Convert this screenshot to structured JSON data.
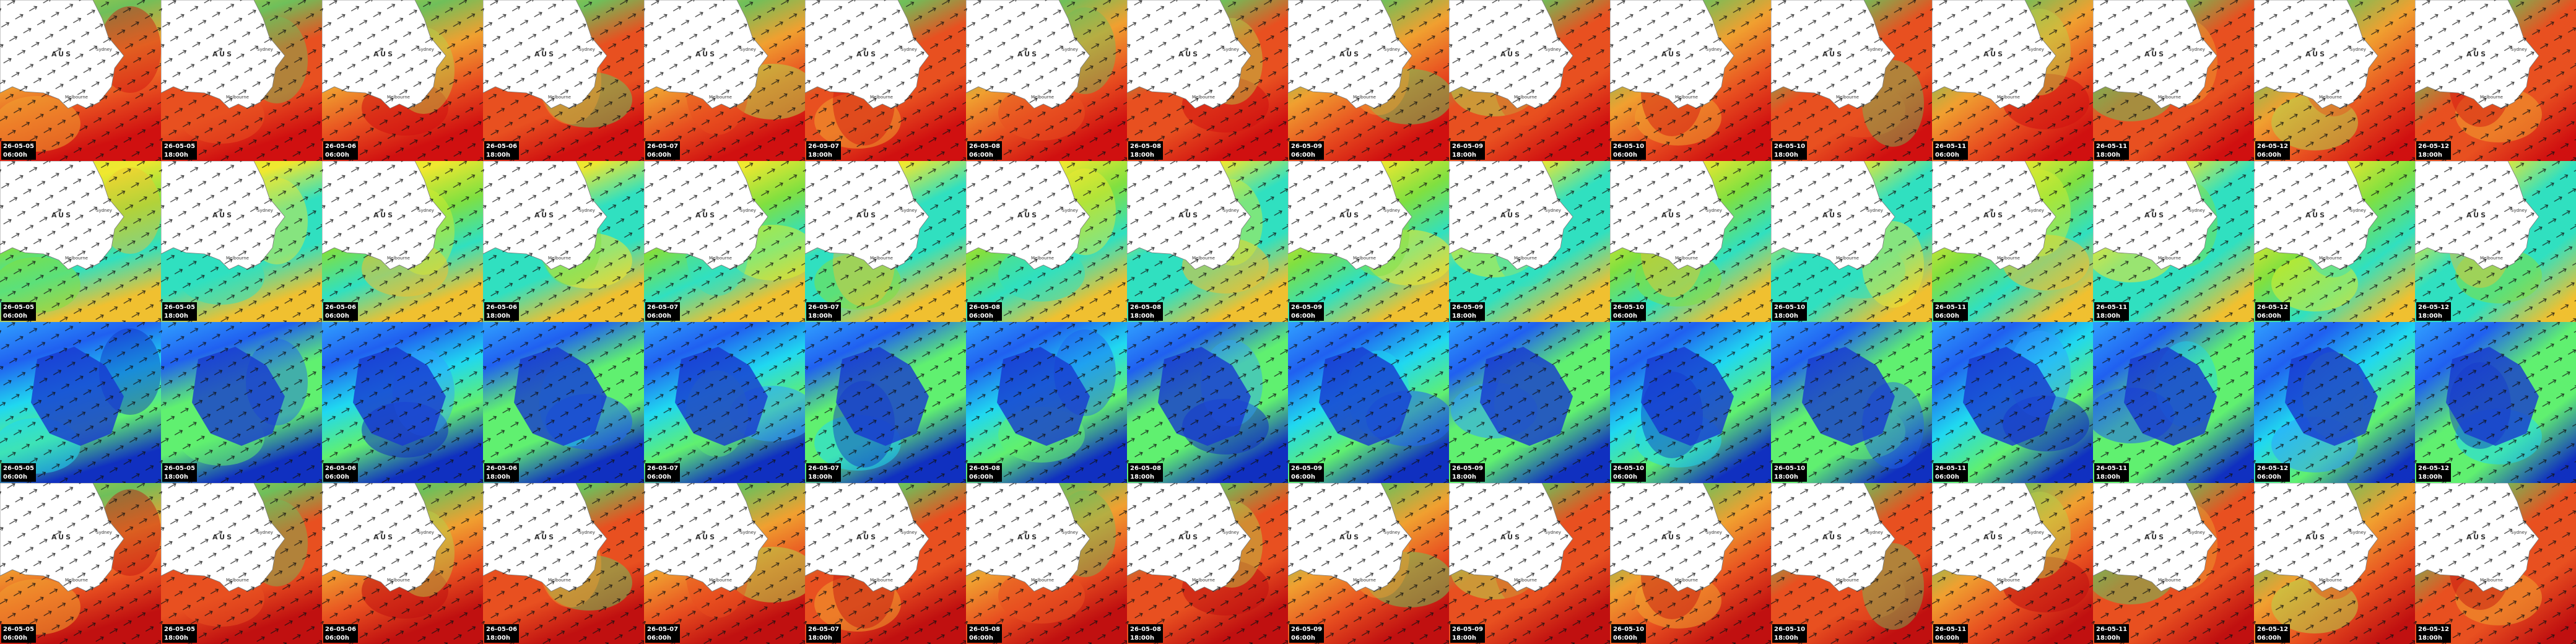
{
  "map_labels": {
    "country": "AUS",
    "city_north": "Sydney",
    "city_south": "Melbourne"
  },
  "rows": [
    {
      "tiles": [
        {
          "date": "26-05-05",
          "time": "06:00h"
        },
        {
          "date": "26-05-05",
          "time": "18:00h"
        },
        {
          "date": "26-05-06",
          "time": "06:00h"
        },
        {
          "date": "26-05-06",
          "time": "18:00h"
        },
        {
          "date": "26-05-07",
          "time": "06:00h"
        },
        {
          "date": "26-05-07",
          "time": "18:00h"
        },
        {
          "date": "26-05-08",
          "time": "06:00h"
        },
        {
          "date": "26-05-08",
          "time": "18:00h"
        },
        {
          "date": "26-05-09",
          "time": "06:00h"
        },
        {
          "date": "26-05-09",
          "time": "18:00h"
        },
        {
          "date": "26-05-10",
          "time": "06:00h"
        },
        {
          "date": "26-05-10",
          "time": "18:00h"
        },
        {
          "date": "26-05-11",
          "time": "06:00h"
        },
        {
          "date": "26-05-11",
          "time": "18:00h"
        },
        {
          "date": "26-05-12",
          "time": "06:00h"
        },
        {
          "date": "26-05-12",
          "time": "18:00h"
        }
      ]
    },
    {
      "tiles": [
        {
          "date": "26-05-05",
          "time": "06:00h"
        },
        {
          "date": "26-05-05",
          "time": "18:00h"
        },
        {
          "date": "26-05-06",
          "time": "06:00h"
        },
        {
          "date": "26-05-06",
          "time": "18:00h"
        },
        {
          "date": "26-05-07",
          "time": "06:00h"
        },
        {
          "date": "26-05-07",
          "time": "18:00h"
        },
        {
          "date": "26-05-08",
          "time": "06:00h"
        },
        {
          "date": "26-05-08",
          "time": "18:00h"
        },
        {
          "date": "26-05-09",
          "time": "06:00h"
        },
        {
          "date": "26-05-09",
          "time": "18:00h"
        },
        {
          "date": "26-05-10",
          "time": "06:00h"
        },
        {
          "date": "26-05-10",
          "time": "18:00h"
        },
        {
          "date": "26-05-11",
          "time": "06:00h"
        },
        {
          "date": "26-05-11",
          "time": "18:00h"
        },
        {
          "date": "26-05-12",
          "time": "06:00h"
        },
        {
          "date": "26-05-12",
          "time": "18:00h"
        }
      ]
    },
    {
      "tiles": [
        {
          "date": "26-05-05",
          "time": "06:00h"
        },
        {
          "date": "26-05-05",
          "time": "18:00h"
        },
        {
          "date": "26-05-06",
          "time": "06:00h"
        },
        {
          "date": "26-05-06",
          "time": "18:00h"
        },
        {
          "date": "26-05-07",
          "time": "06:00h"
        },
        {
          "date": "26-05-07",
          "time": "18:00h"
        },
        {
          "date": "26-05-08",
          "time": "06:00h"
        },
        {
          "date": "26-05-08",
          "time": "18:00h"
        },
        {
          "date": "26-05-09",
          "time": "06:00h"
        },
        {
          "date": "26-05-09",
          "time": "18:00h"
        },
        {
          "date": "26-05-10",
          "time": "06:00h"
        },
        {
          "date": "26-05-10",
          "time": "18:00h"
        },
        {
          "date": "26-05-11",
          "time": "06:00h"
        },
        {
          "date": "26-05-11",
          "time": "18:00h"
        },
        {
          "date": "26-05-12",
          "time": "06:00h"
        },
        {
          "date": "26-05-12",
          "time": "18:00h"
        }
      ]
    },
    {
      "tiles": [
        {
          "date": "26-05-05",
          "time": "06:00h"
        },
        {
          "date": "26-05-05",
          "time": "18:00h"
        },
        {
          "date": "26-05-06",
          "time": "06:00h"
        },
        {
          "date": "26-05-06",
          "time": "18:00h"
        },
        {
          "date": "26-05-07",
          "time": "06:00h"
        },
        {
          "date": "26-05-07",
          "time": "18:00h"
        },
        {
          "date": "26-05-08",
          "time": "06:00h"
        },
        {
          "date": "26-05-08",
          "time": "18:00h"
        },
        {
          "date": "26-05-09",
          "time": "06:00h"
        },
        {
          "date": "26-05-09",
          "time": "18:00h"
        },
        {
          "date": "26-05-10",
          "time": "06:00h"
        },
        {
          "date": "26-05-10",
          "time": "18:00h"
        },
        {
          "date": "26-05-11",
          "time": "06:00h"
        },
        {
          "date": "26-05-11",
          "time": "18:00h"
        },
        {
          "date": "26-05-12",
          "time": "06:00h"
        },
        {
          "date": "26-05-12",
          "time": "18:00h"
        }
      ]
    }
  ]
}
